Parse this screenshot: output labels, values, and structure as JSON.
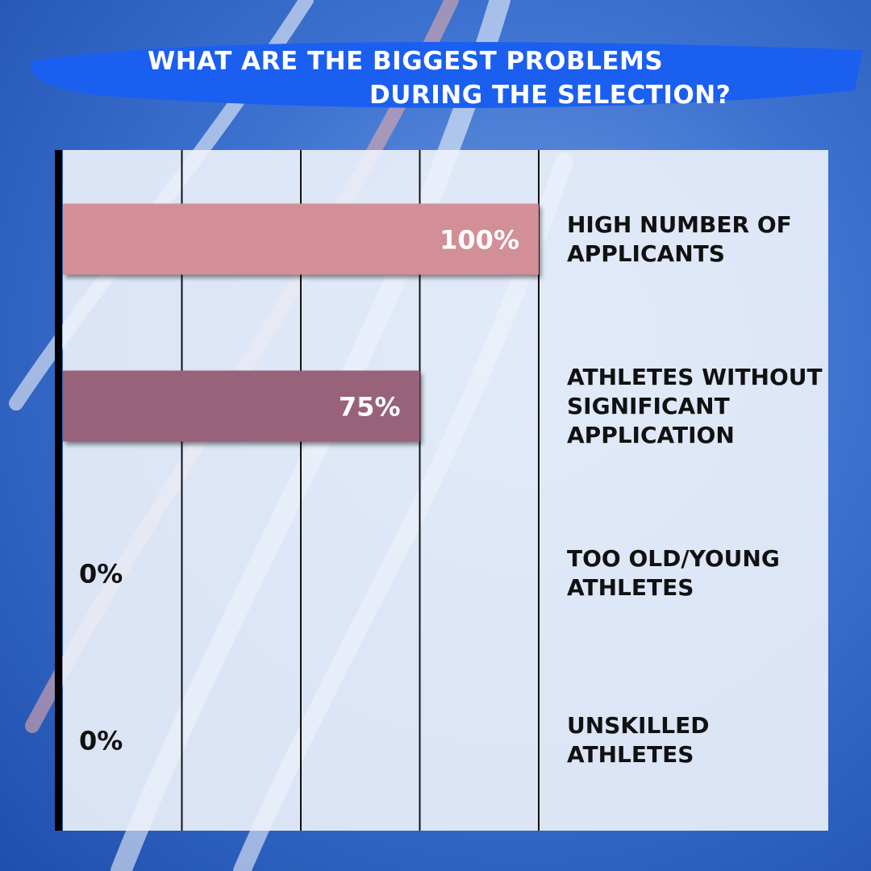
{
  "chart_data": {
    "type": "barh",
    "title": [
      "WHAT ARE THE BIGGEST PROBLEMS",
      "DURING THE SELECTION?"
    ],
    "categories": [
      "HIGH NUMBER OF APPLICANTS",
      "ATHLETES WITHOUT SIGNIFICANT APPLICATION",
      "TOO OLD/YOUNG ATHLETES",
      "UNSKILLED ATHLETES"
    ],
    "values": [
      100,
      75,
      0,
      0
    ],
    "value_labels": [
      "100%",
      "75%",
      "0%",
      "0%"
    ],
    "colors": [
      "#d28f97",
      "#98627a",
      "#d28f97",
      "#98627a"
    ],
    "xlim": [
      0,
      100
    ],
    "xticks": [
      0,
      25,
      50,
      75,
      100
    ],
    "grid": true
  }
}
